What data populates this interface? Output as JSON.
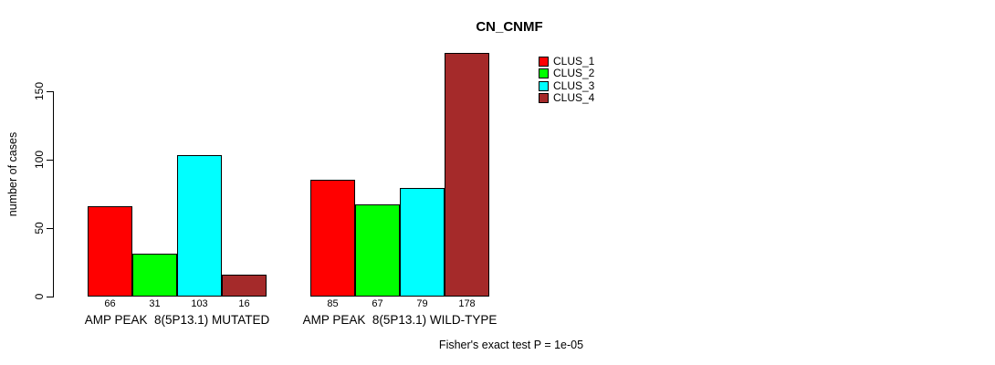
{
  "title": "CN_CNMF",
  "footer": "Fisher's exact test P = 1e-05",
  "y_axis": {
    "label": "number of cases",
    "ticks": [
      0,
      50,
      100,
      150
    ]
  },
  "legend": {
    "position": "top-right",
    "entries": [
      {
        "label": "CLUS_1",
        "color": "#ff0000"
      },
      {
        "label": "CLUS_2",
        "color": "#00ff00"
      },
      {
        "label": "CLUS_3",
        "color": "#00ffff"
      },
      {
        "label": "CLUS_4",
        "color": "#a52a2a"
      }
    ]
  },
  "chart_data": {
    "type": "bar",
    "title": "CN_CNMF",
    "xlabel": "",
    "ylabel": "number of cases",
    "ylim": [
      0,
      178
    ],
    "yticks": [
      0,
      50,
      100,
      150
    ],
    "grid": false,
    "legend_position": "top-right",
    "categories": [
      "AMP PEAK  8(5P13.1) MUTATED",
      "AMP PEAK  8(5P13.1) WILD-TYPE"
    ],
    "series": [
      {
        "name": "CLUS_1",
        "color": "#ff0000",
        "values": [
          66,
          85
        ]
      },
      {
        "name": "CLUS_2",
        "color": "#00ff00",
        "values": [
          31,
          67
        ]
      },
      {
        "name": "CLUS_3",
        "color": "#00ffff",
        "values": [
          103,
          79
        ]
      },
      {
        "name": "CLUS_4",
        "color": "#a52a2a",
        "values": [
          16,
          178
        ]
      }
    ],
    "bar_value_labels": [
      [
        66,
        31,
        103,
        16
      ],
      [
        85,
        67,
        79,
        178
      ]
    ],
    "annotation": "Fisher's exact test P = 1e-05"
  }
}
